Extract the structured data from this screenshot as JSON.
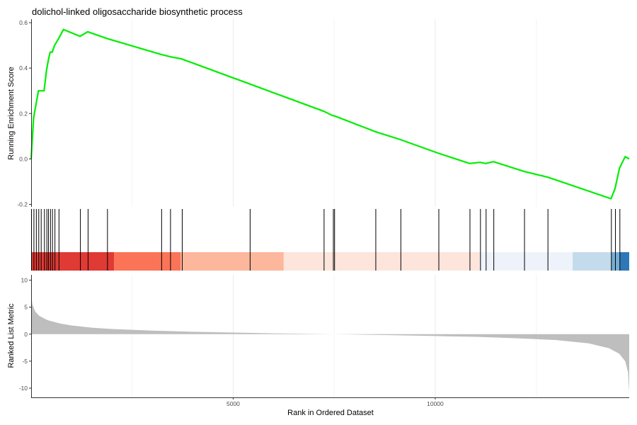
{
  "chart_data": {
    "type": "line",
    "title": "dolichol-linked oligosaccharide biosynthetic process",
    "x_range": [
      0,
      14800
    ],
    "x_ticks": [
      5000,
      10000
    ],
    "x_tick_labels": [
      "5000",
      "10000"
    ],
    "xlabel": "Rank in Ordered Dataset",
    "grid": true,
    "panels": {
      "enrichment": {
        "ylabel": "Running Enrichment Score",
        "ylim": [
          -0.2,
          0.6
        ],
        "y_ticks": [
          -0.2,
          0.0,
          0.2,
          0.4,
          0.6
        ],
        "y_tick_labels": [
          "-0.2",
          "0.0",
          "0.2",
          "0.4",
          "0.6"
        ],
        "line_color": "#00ee00",
        "hits": [
          0,
          60,
          120,
          180,
          240,
          320,
          380,
          420,
          470,
          520,
          580,
          680,
          1210,
          1400,
          1880,
          3220,
          3440,
          3730,
          5410,
          7240,
          7470,
          7500,
          8520,
          9140,
          10080,
          10850,
          11110,
          11250,
          11440,
          12200,
          12780,
          14350,
          14450,
          14560
        ],
        "points": [
          [
            0,
            0.0
          ],
          [
            60,
            0.18
          ],
          [
            120,
            0.24
          ],
          [
            180,
            0.3
          ],
          [
            320,
            0.3
          ],
          [
            380,
            0.39
          ],
          [
            420,
            0.43
          ],
          [
            470,
            0.47
          ],
          [
            520,
            0.47
          ],
          [
            580,
            0.5
          ],
          [
            680,
            0.53
          ],
          [
            800,
            0.57
          ],
          [
            1210,
            0.54
          ],
          [
            1400,
            0.56
          ],
          [
            1880,
            0.53
          ],
          [
            3220,
            0.46
          ],
          [
            3440,
            0.45
          ],
          [
            3730,
            0.44
          ],
          [
            5410,
            0.33
          ],
          [
            7240,
            0.21
          ],
          [
            7470,
            0.19
          ],
          [
            7500,
            0.19
          ],
          [
            8520,
            0.12
          ],
          [
            9140,
            0.085
          ],
          [
            10080,
            0.025
          ],
          [
            10850,
            -0.02
          ],
          [
            11110,
            -0.015
          ],
          [
            11250,
            -0.02
          ],
          [
            11440,
            -0.012
          ],
          [
            12200,
            -0.055
          ],
          [
            12780,
            -0.08
          ],
          [
            14350,
            -0.175
          ],
          [
            14450,
            -0.13
          ],
          [
            14560,
            -0.04
          ],
          [
            14700,
            0.01
          ],
          [
            14800,
            0.0
          ]
        ]
      },
      "ranked_list_metric": {
        "ylabel": "Ranked List Metric",
        "ylim": [
          -11,
          11
        ],
        "y_ticks": [
          -10,
          -5,
          0,
          5,
          10
        ],
        "y_tick_labels": [
          "-10",
          "-5",
          "0",
          "5",
          "10"
        ],
        "fill_color": "#bebebe",
        "points": [
          [
            0,
            7.5
          ],
          [
            30,
            5.5
          ],
          [
            100,
            4.2
          ],
          [
            200,
            3.4
          ],
          [
            400,
            2.6
          ],
          [
            700,
            2.0
          ],
          [
            1000,
            1.6
          ],
          [
            1500,
            1.2
          ],
          [
            2000,
            0.95
          ],
          [
            3000,
            0.65
          ],
          [
            4000,
            0.45
          ],
          [
            5000,
            0.3
          ],
          [
            6000,
            0.15
          ],
          [
            7000,
            0.05
          ],
          [
            7500,
            0.0
          ],
          [
            8000,
            -0.07
          ],
          [
            9000,
            -0.2
          ],
          [
            10000,
            -0.35
          ],
          [
            11000,
            -0.5
          ],
          [
            12000,
            -0.75
          ],
          [
            13000,
            -1.1
          ],
          [
            13800,
            -1.7
          ],
          [
            14300,
            -2.6
          ],
          [
            14550,
            -3.6
          ],
          [
            14700,
            -5.0
          ],
          [
            14770,
            -7.0
          ],
          [
            14800,
            -10.8
          ]
        ]
      },
      "color_bar": {
        "bands": [
          {
            "from": 0,
            "to": 2050,
            "color": "#e03a35"
          },
          {
            "from": 2050,
            "to": 3700,
            "color": "#fb7458"
          },
          {
            "from": 3700,
            "to": 6250,
            "color": "#fcb79d"
          },
          {
            "from": 6250,
            "to": 11100,
            "color": "#fde5dc"
          },
          {
            "from": 11100,
            "to": 13400,
            "color": "#eef3fb"
          },
          {
            "from": 13400,
            "to": 14350,
            "color": "#c4dbeb"
          },
          {
            "from": 14350,
            "to": 14560,
            "color": "#78aed6"
          },
          {
            "from": 14560,
            "to": 14800,
            "color": "#2f78b7"
          }
        ]
      }
    }
  }
}
